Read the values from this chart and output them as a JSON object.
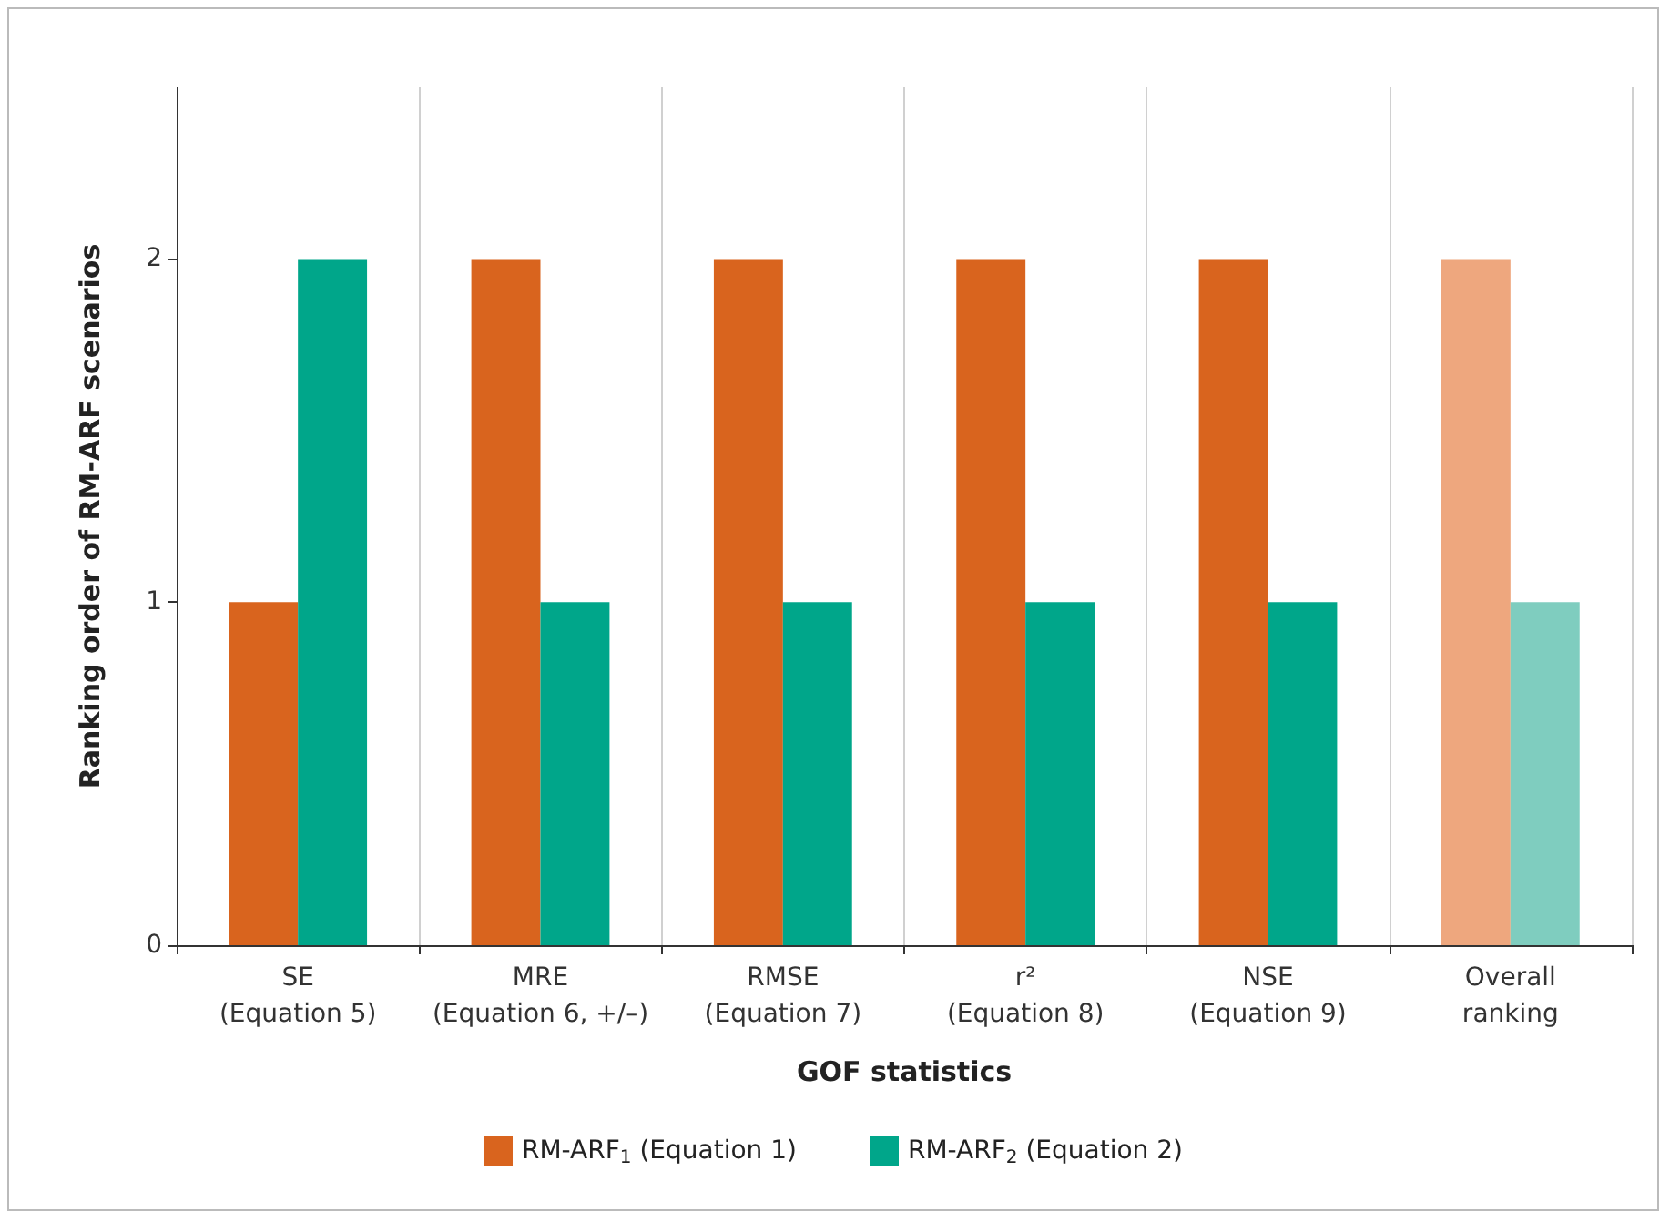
{
  "chart_data": {
    "type": "bar",
    "xlabel": "GOF statistics",
    "ylabel": "Ranking order of RM-ARF scenarios",
    "categories": [
      "SE\n(Equation 5)",
      "MRE\n(Equation 6, +/–)",
      "RMSE\n(Equation 7)",
      "r²\n(Equation 8)",
      "NSE\n(Equation 9)",
      "Overall\nranking"
    ],
    "series": [
      {
        "name": "RM-ARF$_{1}$ (Equation 1)",
        "color": "#d9641e",
        "colors": [
          "#d9641e",
          "#d9641e",
          "#d9641e",
          "#d9641e",
          "#d9641e",
          "#eea77e"
        ],
        "values": [
          1,
          2,
          2,
          2,
          2,
          2
        ]
      },
      {
        "name": "RM-ARF$_{2}$ (Equation 2)",
        "color": "#00a68a",
        "colors": [
          "#00a68a",
          "#00a68a",
          "#00a68a",
          "#00a68a",
          "#00a68a",
          "#7fcdbf"
        ],
        "values": [
          2,
          1,
          1,
          1,
          1,
          1
        ]
      }
    ],
    "ylim": [
      0,
      2.5
    ],
    "yticks": [
      0,
      1,
      2
    ],
    "grid": "x",
    "legend": "bottom"
  }
}
